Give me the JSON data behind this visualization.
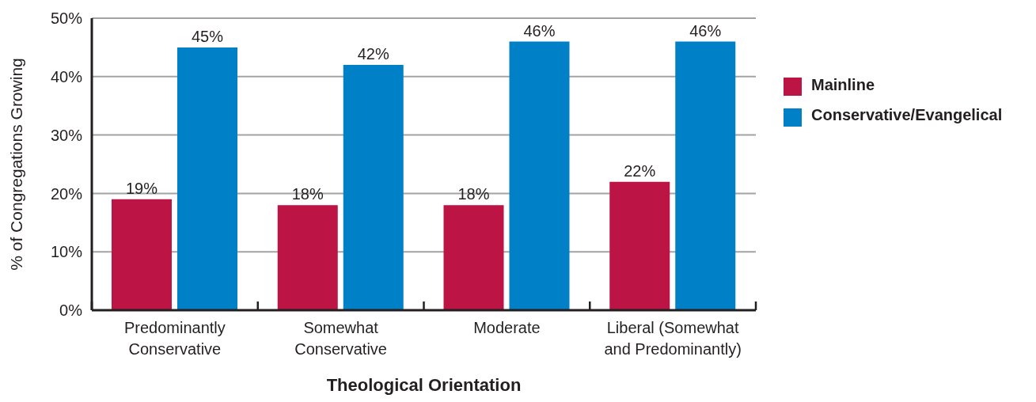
{
  "chart_data": {
    "type": "bar",
    "xlabel": "Theological Orientation",
    "ylabel": "% of Congregations Growing",
    "categories": [
      "Predominantly Conservative",
      "Somewhat Conservative",
      "Moderate",
      "Liberal (Somewhat and Predominantly)"
    ],
    "series": [
      {
        "name": "Mainline",
        "color": "#bc1545",
        "values": [
          19,
          18,
          18,
          22
        ],
        "value_labels": [
          "19%",
          "18%",
          "18%",
          "22%"
        ]
      },
      {
        "name": "Conservative/Evangelical",
        "color": "#0080c6",
        "values": [
          45,
          42,
          46,
          46
        ],
        "value_labels": [
          "45%",
          "42%",
          "46%",
          "46%"
        ]
      }
    ],
    "ylim": [
      0,
      50
    ],
    "yticks": [
      {
        "value": 0,
        "label": "0%"
      },
      {
        "value": 10,
        "label": "10%"
      },
      {
        "value": 20,
        "label": "20%"
      },
      {
        "value": 30,
        "label": "30%"
      },
      {
        "value": 40,
        "label": "40%"
      },
      {
        "value": 50,
        "label": "50%"
      }
    ],
    "grid": "y",
    "legend": "right"
  }
}
